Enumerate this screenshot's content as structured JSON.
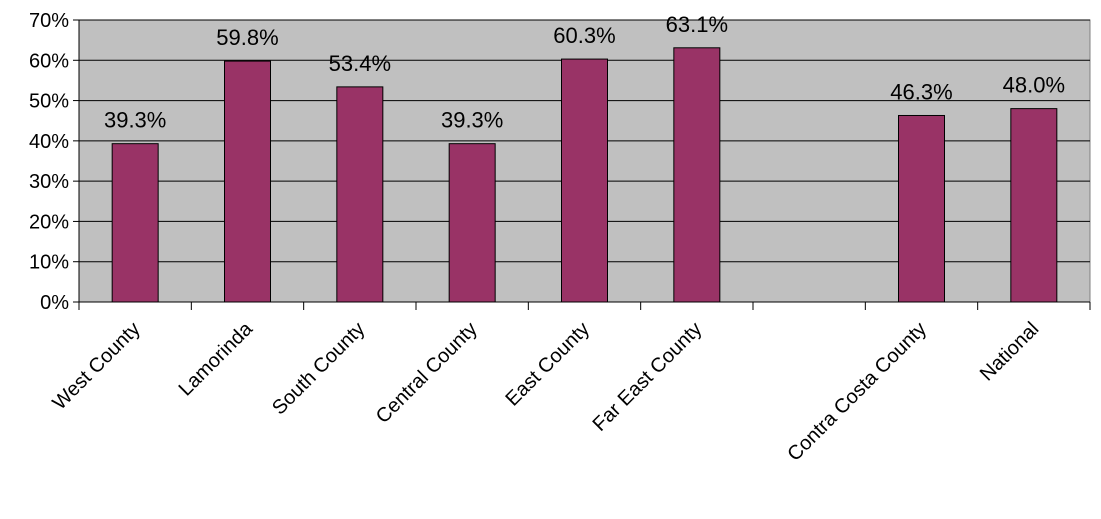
{
  "chart_data": {
    "type": "bar",
    "categories": [
      "West County",
      "Lamorinda",
      "South County",
      "Central County",
      "East County",
      "Far East County",
      "",
      "Contra Costa County",
      "National"
    ],
    "values": [
      39.3,
      59.8,
      53.4,
      39.3,
      60.3,
      63.1,
      null,
      46.3,
      48.0
    ],
    "data_labels": [
      "39.3%",
      "59.8%",
      "53.4%",
      "39.3%",
      "60.3%",
      "63.1%",
      "",
      "46.3%",
      "48.0%"
    ],
    "y_ticks": [
      {
        "value": 0,
        "label": "0%"
      },
      {
        "value": 10,
        "label": "10%"
      },
      {
        "value": 20,
        "label": "20%"
      },
      {
        "value": 30,
        "label": "30%"
      },
      {
        "value": 40,
        "label": "40%"
      },
      {
        "value": 50,
        "label": "50%"
      },
      {
        "value": 60,
        "label": "60%"
      },
      {
        "value": 70,
        "label": "70%"
      }
    ],
    "ylim": [
      0,
      70
    ],
    "title": "",
    "xlabel": "",
    "ylabel": "",
    "grid": true,
    "colors": {
      "bar": "#993366",
      "plot_background": "#c0c0c0",
      "gridline": "#000000"
    }
  }
}
